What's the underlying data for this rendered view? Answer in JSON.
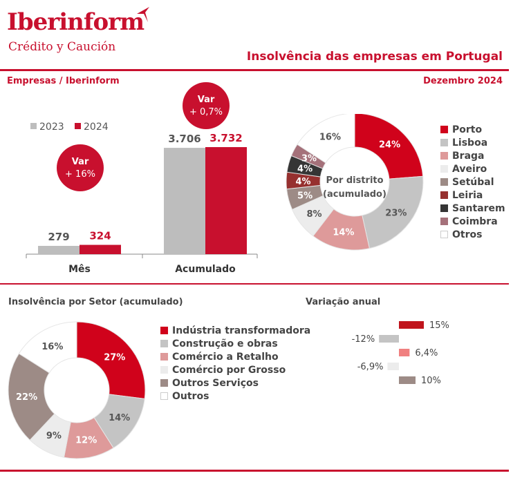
{
  "header": {
    "brand": "Iberinform",
    "brand_sub": "Crédito y Caución",
    "title": "Insolvência das empresas em Portugal",
    "source": "Empresas / Iberinform",
    "date": "Dezembro 2024"
  },
  "colors": {
    "brand": "#c8102e",
    "bar_2023": "#bdbdbd",
    "bar_2024": "#c8102e"
  },
  "chart_data": [
    {
      "type": "bar",
      "categories": [
        "Mês",
        "Acumulado"
      ],
      "series": [
        {
          "name": "2023",
          "values": [
            279,
            3706
          ],
          "labels": [
            "279",
            "3.706"
          ]
        },
        {
          "name": "2024",
          "values": [
            324,
            3732
          ],
          "labels": [
            "324",
            "3.732"
          ]
        }
      ],
      "annotations": [
        {
          "category": "Mês",
          "line1": "Var",
          "line2": "+ 16%"
        },
        {
          "category": "Acumulado",
          "line1": "Var",
          "line2": "+ 0,7%"
        }
      ]
    },
    {
      "type": "pie",
      "center_label": [
        "Por distrito",
        "(acumulado)"
      ],
      "slices": [
        {
          "name": "Porto",
          "value": 24,
          "label": "24%",
          "color": "#d0021b"
        },
        {
          "name": "Lisboa",
          "value": 23,
          "label": "23%",
          "color": "#c4c4c4"
        },
        {
          "name": "Braga",
          "value": 14,
          "label": "14%",
          "color": "#de9a9a"
        },
        {
          "name": "Aveiro",
          "value": 8,
          "label": "8%",
          "color": "#ececec"
        },
        {
          "name": "Setúbal",
          "value": 5,
          "label": "5%",
          "color": "#9d8b86"
        },
        {
          "name": "Leiria",
          "value": 4,
          "label": "4%",
          "color": "#96302f"
        },
        {
          "name": "Santarem",
          "value": 4,
          "label": "4%",
          "color": "#353535"
        },
        {
          "name": "Coimbra",
          "value": 3,
          "label": "3%",
          "color": "#a5717a"
        },
        {
          "name": "Otros",
          "value": 16,
          "label": "16%",
          "color": "#ffffff"
        }
      ]
    },
    {
      "type": "pie",
      "title": "Insolvência por Setor (acumulado)",
      "slices": [
        {
          "name": "Indústria transformadora",
          "value": 27,
          "label": "27%",
          "color": "#d0021b"
        },
        {
          "name": "Construção e obras",
          "value": 14,
          "label": "14%",
          "color": "#c4c4c4"
        },
        {
          "name": "Comércio a Retalho",
          "value": 12,
          "label": "12%",
          "color": "#de9a9a"
        },
        {
          "name": "Comércio por Grosso",
          "value": 9,
          "label": "9%",
          "color": "#ececec"
        },
        {
          "name": "Outros Serviços",
          "value": 22,
          "label": "22%",
          "color": "#9d8b86"
        },
        {
          "name": "Outros",
          "value": 16,
          "label": "16%",
          "color": "#ffffff"
        }
      ]
    },
    {
      "type": "bar",
      "orientation": "horizontal",
      "title": "Variação anual",
      "bars": [
        {
          "value": 15,
          "label": "15%",
          "color": "#c0141c"
        },
        {
          "value": -12,
          "label": "-12%",
          "color": "#c4c4c4"
        },
        {
          "value": 6.4,
          "label": "6,4%",
          "color": "#f08080"
        },
        {
          "value": -6.9,
          "label": "-6,9%",
          "color": "#ececec"
        },
        {
          "value": 10,
          "label": "10%",
          "color": "#9d8b86"
        }
      ]
    }
  ]
}
